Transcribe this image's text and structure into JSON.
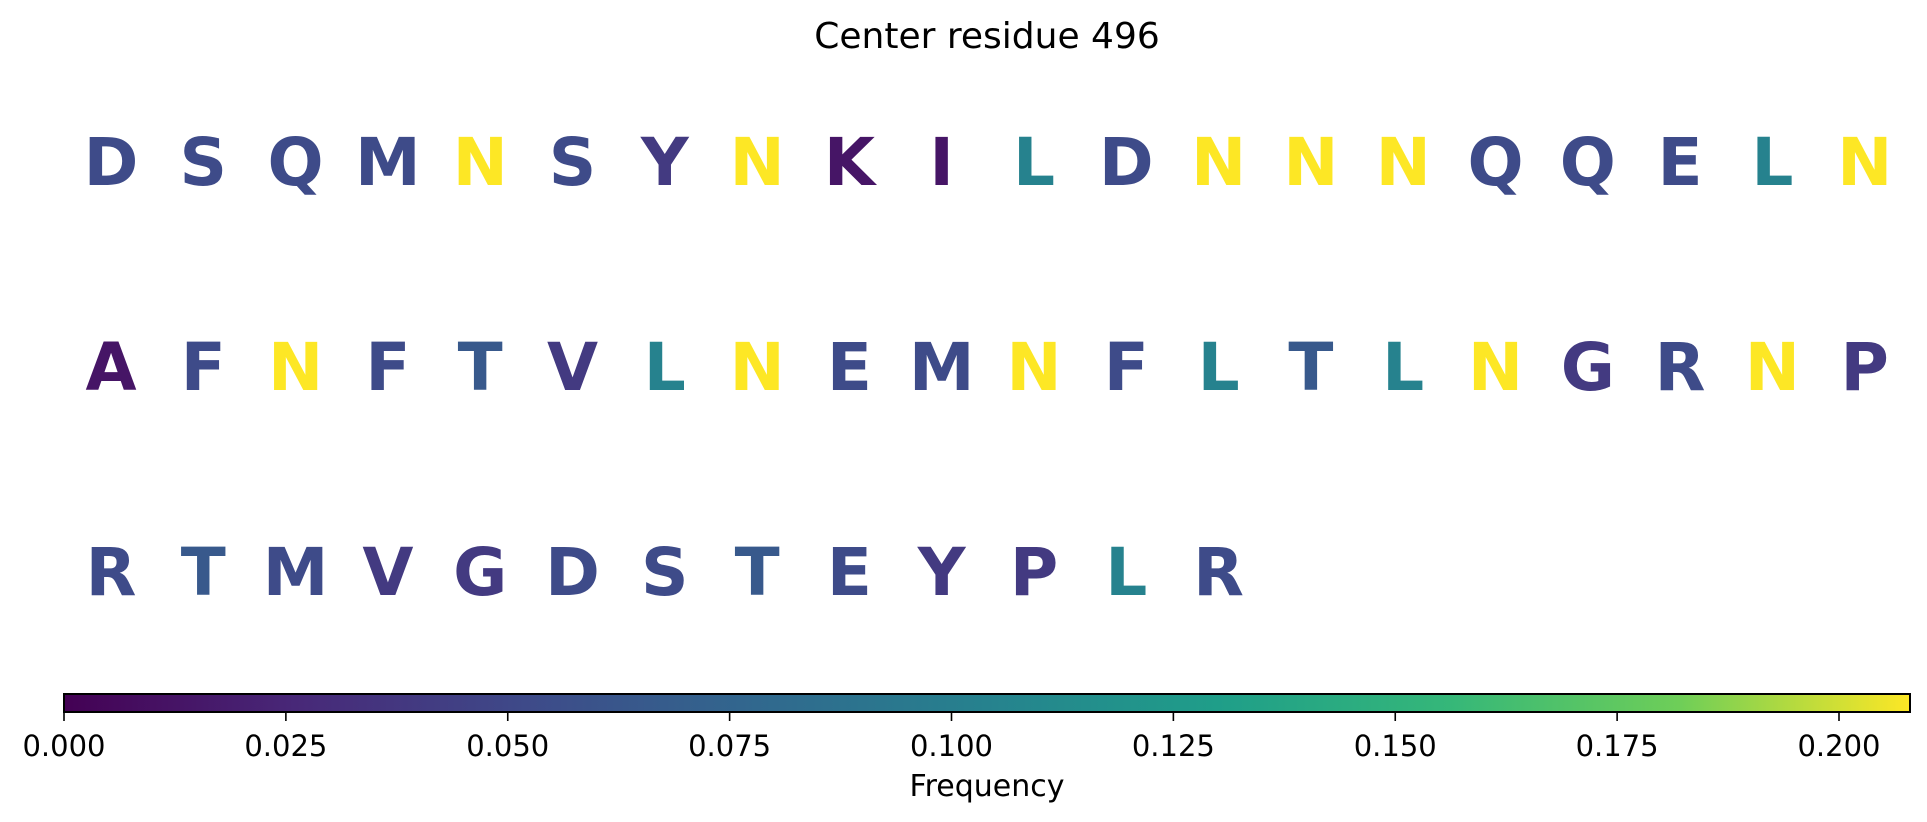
{
  "chart_data": {
    "type": "sequence_logo",
    "title": "Center residue 496",
    "residues": [
      {
        "aa": "D",
        "freq": 0.053
      },
      {
        "aa": "S",
        "freq": 0.053
      },
      {
        "aa": "Q",
        "freq": 0.053
      },
      {
        "aa": "M",
        "freq": 0.053
      },
      {
        "aa": "N",
        "freq": 0.208
      },
      {
        "aa": "S",
        "freq": 0.053
      },
      {
        "aa": "Y",
        "freq": 0.04
      },
      {
        "aa": "N",
        "freq": 0.208
      },
      {
        "aa": "K",
        "freq": 0.013
      },
      {
        "aa": "I",
        "freq": 0.013
      },
      {
        "aa": "L",
        "freq": 0.104
      },
      {
        "aa": "D",
        "freq": 0.053
      },
      {
        "aa": "N",
        "freq": 0.208
      },
      {
        "aa": "N",
        "freq": 0.208
      },
      {
        "aa": "N",
        "freq": 0.208
      },
      {
        "aa": "Q",
        "freq": 0.053
      },
      {
        "aa": "Q",
        "freq": 0.053
      },
      {
        "aa": "E",
        "freq": 0.053
      },
      {
        "aa": "L",
        "freq": 0.104
      },
      {
        "aa": "N",
        "freq": 0.208
      },
      {
        "aa": "A",
        "freq": 0.013
      },
      {
        "aa": "F",
        "freq": 0.053
      },
      {
        "aa": "N",
        "freq": 0.208
      },
      {
        "aa": "F",
        "freq": 0.053
      },
      {
        "aa": "T",
        "freq": 0.065
      },
      {
        "aa": "V",
        "freq": 0.04
      },
      {
        "aa": "L",
        "freq": 0.104
      },
      {
        "aa": "N",
        "freq": 0.208
      },
      {
        "aa": "E",
        "freq": 0.053
      },
      {
        "aa": "M",
        "freq": 0.053
      },
      {
        "aa": "N",
        "freq": 0.208
      },
      {
        "aa": "F",
        "freq": 0.053
      },
      {
        "aa": "L",
        "freq": 0.104
      },
      {
        "aa": "T",
        "freq": 0.065
      },
      {
        "aa": "L",
        "freq": 0.104
      },
      {
        "aa": "N",
        "freq": 0.208
      },
      {
        "aa": "G",
        "freq": 0.04
      },
      {
        "aa": "R",
        "freq": 0.053
      },
      {
        "aa": "N",
        "freq": 0.208
      },
      {
        "aa": "P",
        "freq": 0.04
      },
      {
        "aa": "R",
        "freq": 0.053
      },
      {
        "aa": "T",
        "freq": 0.065
      },
      {
        "aa": "M",
        "freq": 0.053
      },
      {
        "aa": "V",
        "freq": 0.04
      },
      {
        "aa": "G",
        "freq": 0.04
      },
      {
        "aa": "D",
        "freq": 0.053
      },
      {
        "aa": "S",
        "freq": 0.053
      },
      {
        "aa": "T",
        "freq": 0.065
      },
      {
        "aa": "E",
        "freq": 0.053
      },
      {
        "aa": "Y",
        "freq": 0.04
      },
      {
        "aa": "P",
        "freq": 0.04
      },
      {
        "aa": "L",
        "freq": 0.104
      },
      {
        "aa": "R",
        "freq": 0.053
      }
    ],
    "residues_per_row": 20,
    "colormap": "viridis",
    "colorbar": {
      "label": "Frequency",
      "range": [
        0,
        0.208
      ],
      "ticks": [
        0.0,
        0.025,
        0.05,
        0.075,
        0.1,
        0.125,
        0.15,
        0.175,
        0.2
      ],
      "tick_labels": [
        "0.000",
        "0.025",
        "0.050",
        "0.075",
        "0.100",
        "0.125",
        "0.150",
        "0.175",
        "0.200"
      ],
      "orientation": "horizontal",
      "placement": "bottom"
    }
  }
}
